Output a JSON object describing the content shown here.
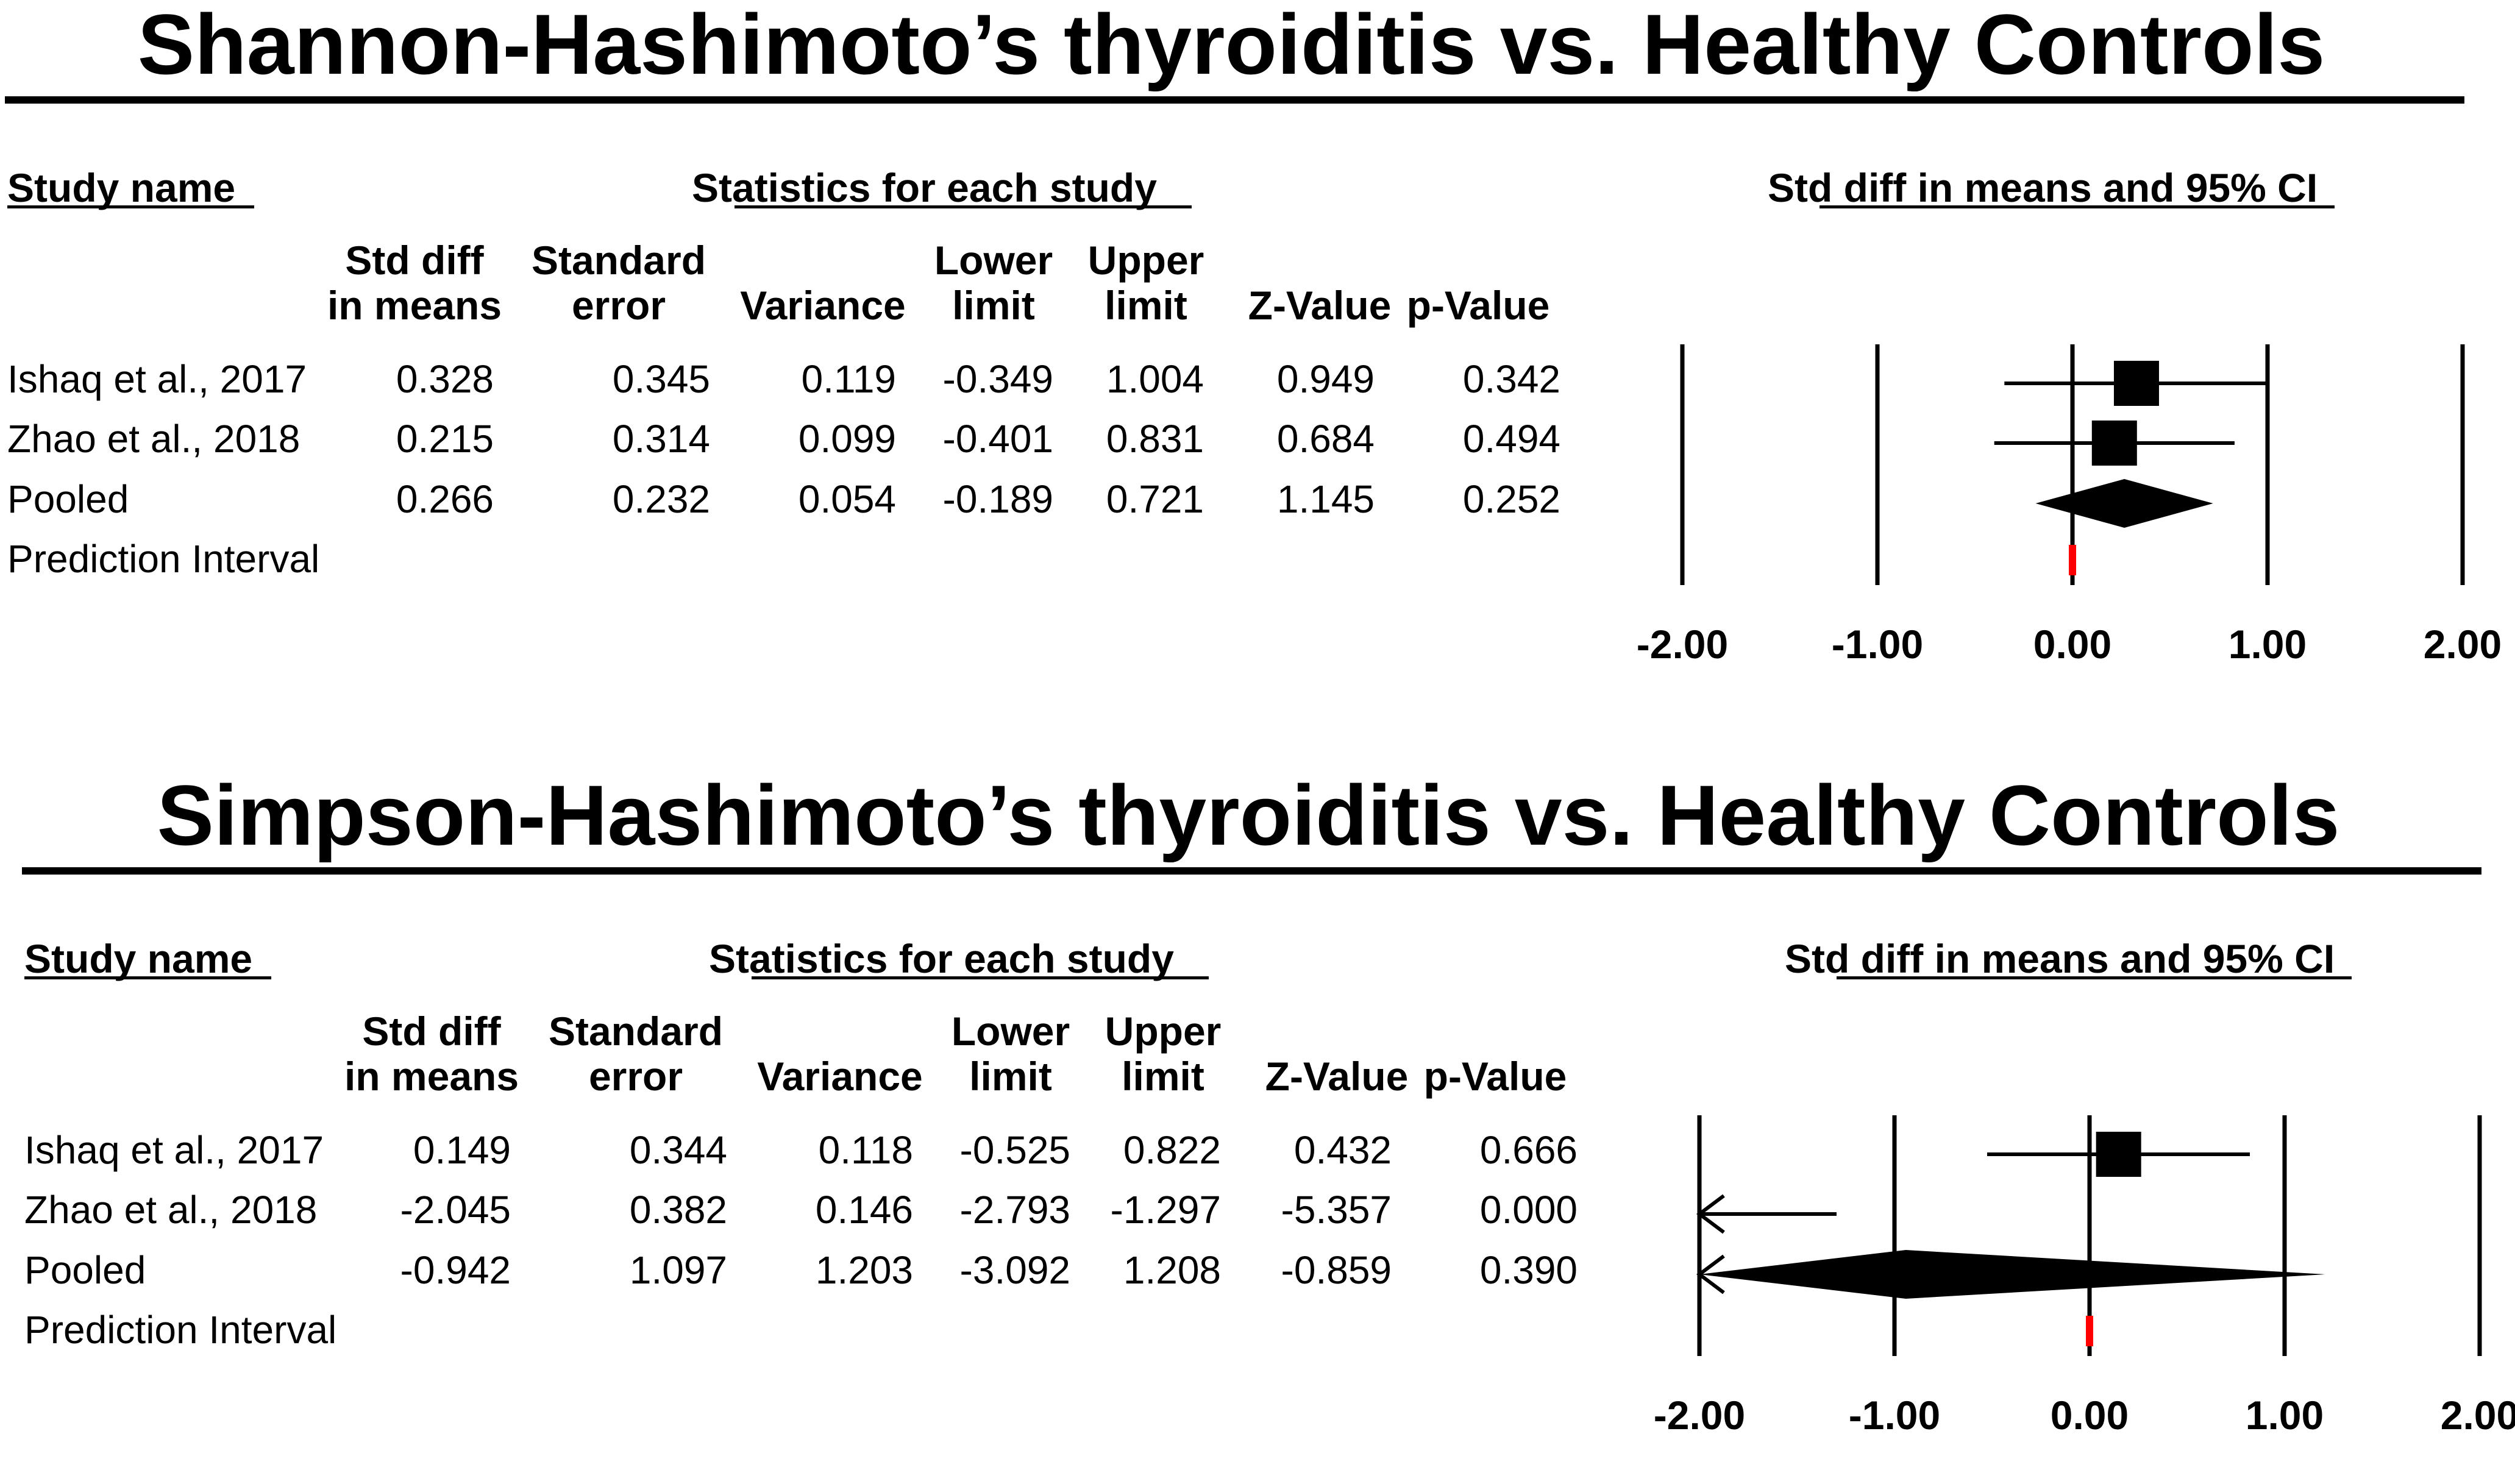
{
  "chart_data": [
    {
      "type": "forest",
      "title": "Shannon-Hashimoto’s thyroiditis vs. Healthy Controls",
      "header_study": "Study name",
      "header_stats": "Statistics for each study",
      "header_ci": "Std diff in means and 95% CI",
      "columns": [
        [
          "Std diff",
          "in means"
        ],
        [
          "Standard",
          "error"
        ],
        [
          "",
          "Variance"
        ],
        [
          "Lower",
          "limit"
        ],
        [
          "Upper",
          "limit"
        ],
        [
          "",
          "Z-Value"
        ],
        [
          "",
          "p-Value"
        ]
      ],
      "rows": [
        {
          "study": "Ishaq et al., 2017",
          "values": [
            "0.328",
            "0.345",
            "0.119",
            "-0.349",
            "1.004",
            "0.949",
            "0.342"
          ],
          "effect": 0.328,
          "lower": -0.349,
          "upper": 1.004,
          "marker": "square"
        },
        {
          "study": "Zhao et al., 2018",
          "values": [
            "0.215",
            "0.314",
            "0.099",
            "-0.401",
            "0.831",
            "0.684",
            "0.494"
          ],
          "effect": 0.215,
          "lower": -0.401,
          "upper": 0.831,
          "marker": "square"
        },
        {
          "study": "Pooled",
          "values": [
            "0.266",
            "0.232",
            "0.054",
            "-0.189",
            "0.721",
            "1.145",
            "0.252"
          ],
          "effect": 0.266,
          "lower": -0.189,
          "upper": 0.721,
          "marker": "diamond"
        },
        {
          "study": "Prediction Interval",
          "values": [
            "",
            "",
            "",
            "",
            "",
            "",
            ""
          ],
          "marker": "red-bar"
        }
      ],
      "xlim": [
        -2,
        2
      ],
      "xticks": [
        "-2.00",
        "-1.00",
        "0.00",
        "1.00",
        "2.00"
      ],
      "accent_color": "#ff0000"
    },
    {
      "type": "forest",
      "title": "Simpson-Hashimoto’s thyroiditis vs. Healthy Controls",
      "header_study": "Study name",
      "header_stats": "Statistics for each study",
      "header_ci": "Std diff in means and 95% CI",
      "columns": [
        [
          "Std diff",
          "in means"
        ],
        [
          "Standard",
          "error"
        ],
        [
          "",
          "Variance"
        ],
        [
          "Lower",
          "limit"
        ],
        [
          "Upper",
          "limit"
        ],
        [
          "",
          "Z-Value"
        ],
        [
          "",
          "p-Value"
        ]
      ],
      "rows": [
        {
          "study": "Ishaq et al., 2017",
          "values": [
            "0.149",
            "0.344",
            "0.118",
            "-0.525",
            "0.822",
            "0.432",
            "0.666"
          ],
          "effect": 0.149,
          "lower": -0.525,
          "upper": 0.822,
          "marker": "square"
        },
        {
          "study": "Zhao et al., 2018",
          "values": [
            "-2.045",
            "0.382",
            "0.146",
            "-2.793",
            "-1.297",
            "-5.357",
            "0.000"
          ],
          "effect": -2.045,
          "lower": -2.793,
          "upper": -1.297,
          "marker": "square"
        },
        {
          "study": "Pooled",
          "values": [
            "-0.942",
            "1.097",
            "1.203",
            "-3.092",
            "1.208",
            "-0.859",
            "0.390"
          ],
          "effect": -0.942,
          "lower": -3.092,
          "upper": 1.208,
          "marker": "diamond"
        },
        {
          "study": "Prediction Interval",
          "values": [
            "",
            "",
            "",
            "",
            "",
            "",
            ""
          ],
          "marker": "red-bar"
        }
      ],
      "xlim": [
        -2,
        2
      ],
      "xticks": [
        "-2.00",
        "-1.00",
        "0.00",
        "1.00",
        "2.00"
      ],
      "accent_color": "#ff0000"
    }
  ]
}
